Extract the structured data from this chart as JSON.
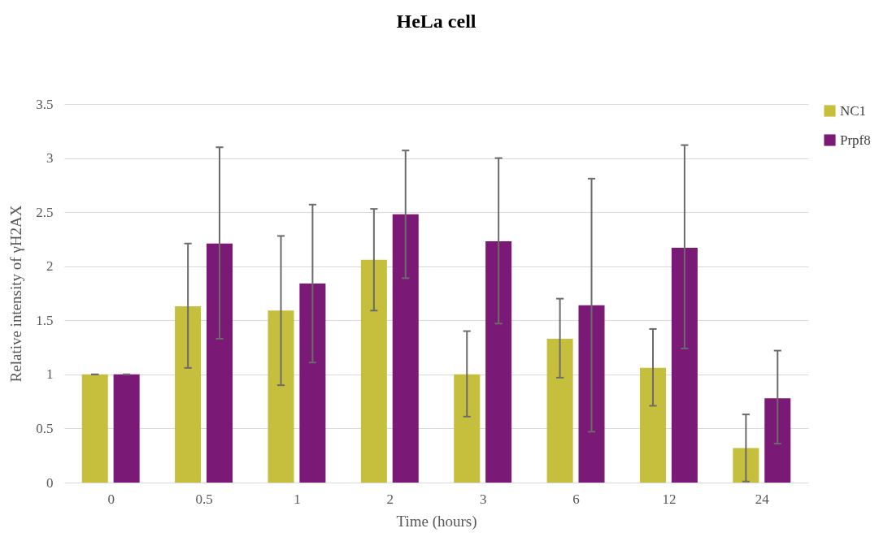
{
  "chart_data": {
    "type": "bar",
    "title": "HeLa cell",
    "xlabel": "Time (hours)",
    "ylabel": "Relative intensity of γH2AX",
    "categories": [
      "0",
      "0.5",
      "1",
      "2",
      "3",
      "6",
      "12",
      "24"
    ],
    "series": [
      {
        "name": "NC1",
        "color": "#c5bf3d",
        "values": [
          1,
          1.63,
          1.59,
          2.06,
          1.0,
          1.33,
          1.06,
          0.32
        ],
        "errors": [
          0,
          [
            1.06,
            2.21
          ],
          [
            0.9,
            2.28
          ],
          [
            1.59,
            2.53
          ],
          [
            0.61,
            1.4
          ],
          [
            0.97,
            1.7
          ],
          [
            0.71,
            1.42
          ],
          [
            0.01,
            0.63
          ]
        ]
      },
      {
        "name": "Prpf8",
        "color": "#7b1a76",
        "values": [
          1,
          2.21,
          1.84,
          2.48,
          2.23,
          1.64,
          2.17,
          0.78
        ],
        "errors": [
          0,
          [
            1.33,
            3.1
          ],
          [
            1.11,
            2.57
          ],
          [
            1.89,
            3.07
          ],
          [
            1.47,
            3.0
          ],
          [
            0.47,
            2.81
          ],
          [
            1.24,
            3.12
          ],
          [
            0.36,
            1.22
          ]
        ]
      }
    ],
    "ylim": [
      0,
      3.5
    ],
    "yticks": [
      0,
      0.5,
      1,
      1.5,
      2,
      2.5,
      3,
      3.5
    ],
    "grid": "y",
    "legend": "right"
  }
}
